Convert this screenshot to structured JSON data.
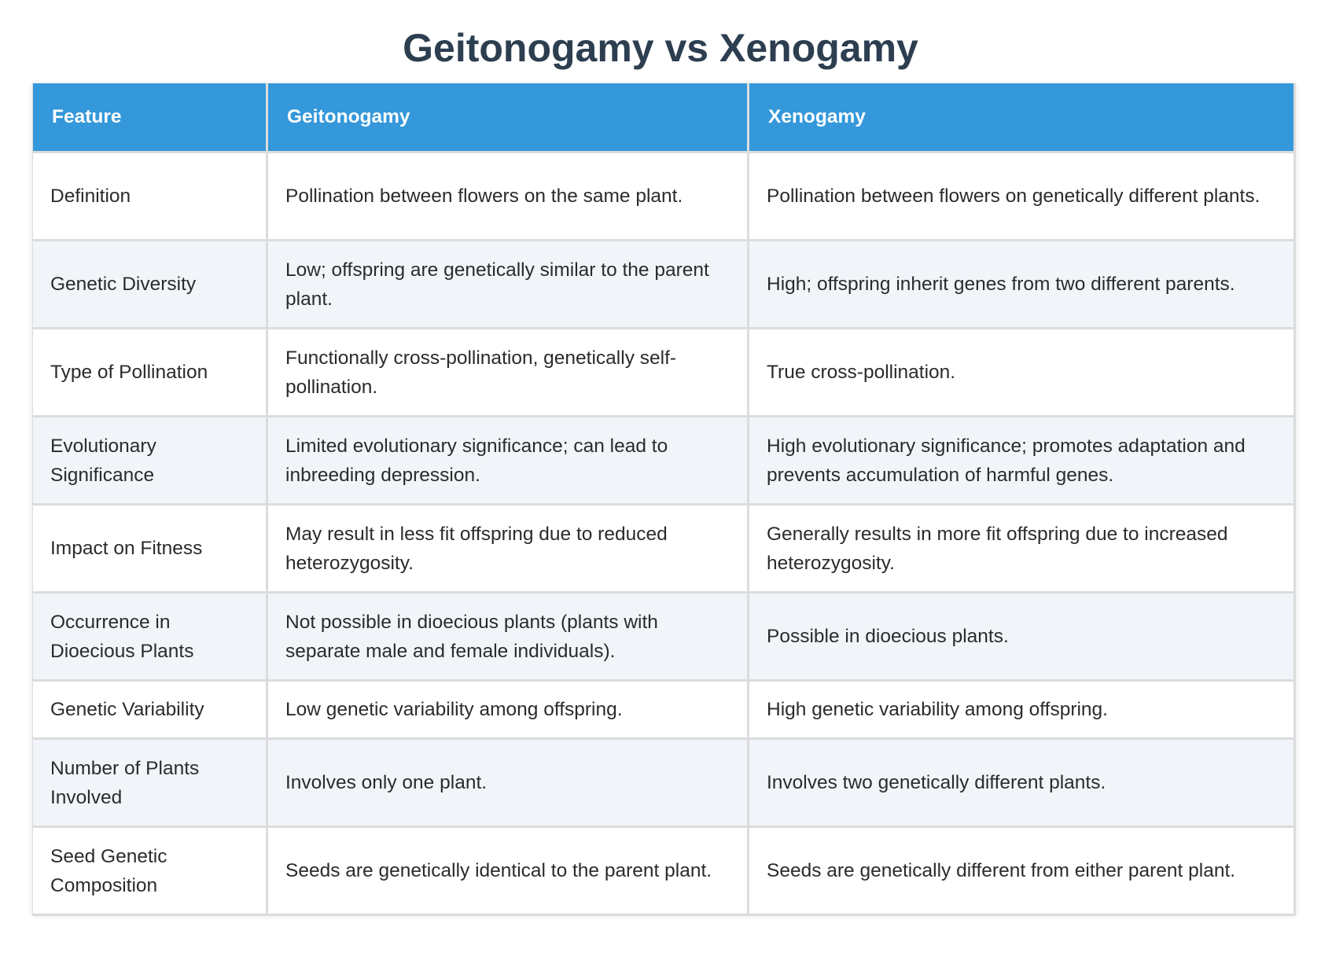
{
  "title": "Geitonogamy vs Xenogamy",
  "table": {
    "headers": [
      "Feature",
      "Geitonogamy",
      "Xenogamy"
    ],
    "rows": [
      [
        "Definition",
        "Pollination between flowers on the same plant.",
        "Pollination between flowers on genetically different plants."
      ],
      [
        "Genetic Diversity",
        "Low; offspring are genetically similar to the parent plant.",
        "High; offspring inherit genes from two different parents."
      ],
      [
        "Type of Pollination",
        "Functionally cross-pollination, genetically self-pollination.",
        "True cross-pollination."
      ],
      [
        "Evolutionary Significance",
        "Limited evolutionary significance; can lead to inbreeding depression.",
        "High evolutionary significance; promotes adaptation and prevents accumulation of harmful genes."
      ],
      [
        "Impact on Fitness",
        "May result in less fit offspring due to reduced heterozygosity.",
        "Generally results in more fit offspring due to increased heterozygosity."
      ],
      [
        "Occurrence in Dioecious Plants",
        "Not possible in dioecious plants (plants with separate male and female individuals).",
        "Possible in dioecious plants."
      ],
      [
        "Genetic Variability",
        "Low genetic variability among offspring.",
        "High genetic variability among offspring."
      ],
      [
        "Number of Plants Involved",
        "Involves only one plant.",
        "Involves two genetically different plants."
      ],
      [
        "Seed Genetic Composition",
        "Seeds are genetically identical to the parent plant.",
        "Seeds are genetically different from either parent plant."
      ]
    ]
  },
  "colors": {
    "title": "#2c3e50",
    "header_background": "#3498db",
    "header_text": "#ffffff",
    "row_alt_background": "#f1f5f9",
    "border": "#dcdcdc"
  }
}
